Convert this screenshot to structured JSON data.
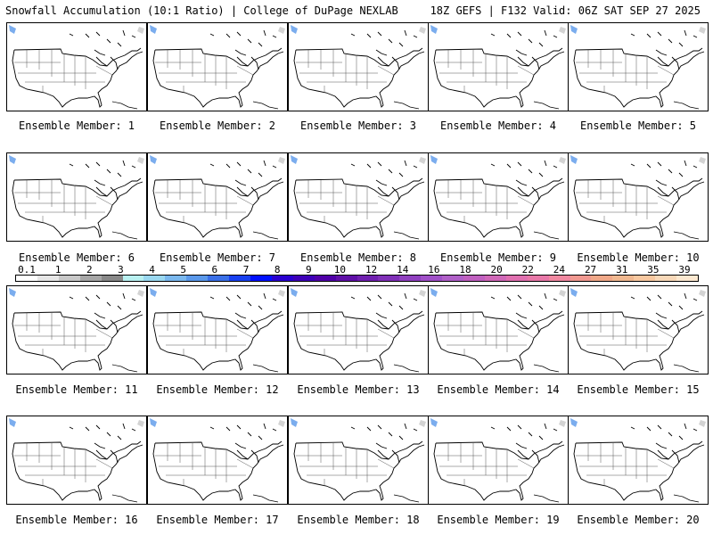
{
  "header": {
    "title": "Snowfall Accumulation (10:1 Ratio) | College of DuPage NEXLAB",
    "run_info": "18Z GEFS | F132 Valid: 06Z SAT SEP 27 2025"
  },
  "panels": [
    {
      "label": "Ensemble Member: 1"
    },
    {
      "label": "Ensemble Member: 2"
    },
    {
      "label": "Ensemble Member: 3"
    },
    {
      "label": "Ensemble Member: 4"
    },
    {
      "label": "Ensemble Member: 5"
    },
    {
      "label": "Ensemble Member: 6"
    },
    {
      "label": "Ensemble Member: 7"
    },
    {
      "label": "Ensemble Member: 8"
    },
    {
      "label": "Ensemble Member: 9"
    },
    {
      "label": "Ensemble Member: 10"
    },
    {
      "label": "Ensemble Member: 11"
    },
    {
      "label": "Ensemble Member: 12"
    },
    {
      "label": "Ensemble Member: 13"
    },
    {
      "label": "Ensemble Member: 14"
    },
    {
      "label": "Ensemble Member: 15"
    },
    {
      "label": "Ensemble Member: 16"
    },
    {
      "label": "Ensemble Member: 17"
    },
    {
      "label": "Ensemble Member: 18"
    },
    {
      "label": "Ensemble Member: 19"
    },
    {
      "label": "Ensemble Member: 20"
    }
  ],
  "colorbar": {
    "labels": [
      "0.1",
      "1",
      "2",
      "3",
      "4",
      "5",
      "6",
      "7",
      "8",
      "9",
      "10",
      "12",
      "14",
      "16",
      "18",
      "20",
      "22",
      "24",
      "27",
      "31",
      "35",
      "39"
    ],
    "colors": [
      "#ffffff",
      "#e6e6e6",
      "#c8c8c8",
      "#a6a6a6",
      "#888888",
      "#b8f0f0",
      "#9ad8f0",
      "#7ab8ee",
      "#5a98ea",
      "#3a70e8",
      "#1840f0",
      "#0010ff",
      "#2a00d0",
      "#3e00b8",
      "#5000a8",
      "#6010a8",
      "#7020b0",
      "#8030b8",
      "#9040c0",
      "#a050c8",
      "#b060c8",
      "#c060c0",
      "#d068b8",
      "#e070b0",
      "#e878a8",
      "#f088a0",
      "#f09890",
      "#f0a888",
      "#f0b890",
      "#f8c8a0",
      "#f8d8b8",
      "#fce8d0"
    ]
  }
}
